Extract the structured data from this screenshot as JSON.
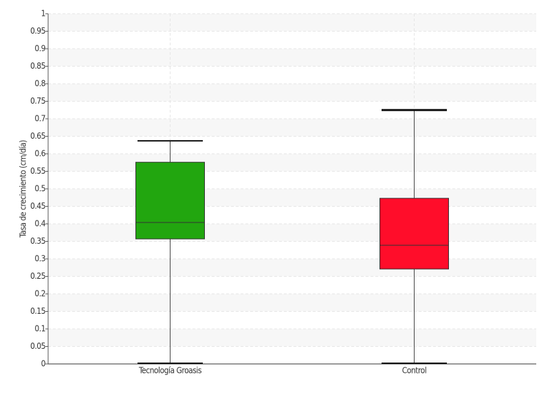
{
  "chart_data": {
    "type": "box",
    "y_label": "Tasa de crecimiento (cm/día)",
    "categories": [
      "Tecnología Groasis",
      "Control"
    ],
    "series": [
      {
        "name": "Tecnología Groasis",
        "color": "#22a60f",
        "min": 0,
        "q1": 0.357,
        "median": 0.404,
        "q3": 0.576,
        "max": 0.637
      },
      {
        "name": "Control",
        "color": "#ff0d2a",
        "min": 0,
        "q1": 0.271,
        "median": 0.339,
        "q3": 0.473,
        "max": 0.725
      }
    ],
    "ylim": [
      0,
      1
    ],
    "yticks": [
      0,
      0.05,
      0.1,
      0.15,
      0.2,
      0.25,
      0.3,
      0.35,
      0.4,
      0.45,
      0.5,
      0.55,
      0.6,
      0.65,
      0.7,
      0.75,
      0.8,
      0.85,
      0.9,
      0.95,
      1
    ],
    "grid": true
  }
}
